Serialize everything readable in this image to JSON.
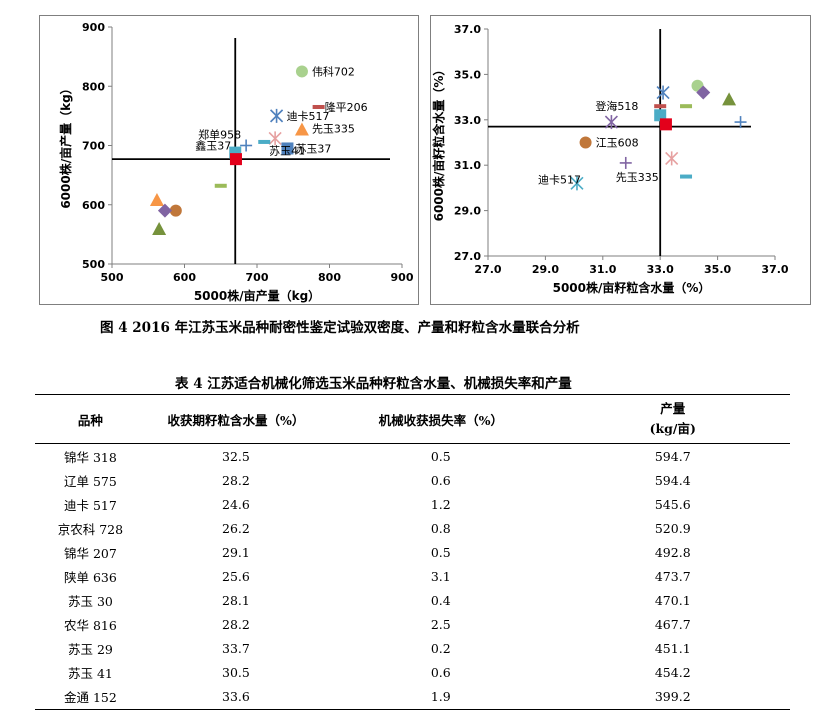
{
  "chart_data": [
    {
      "type": "scatter",
      "title": "",
      "xlabel": "5000株/亩产量（kg）",
      "ylabel": "6000株/亩产量（kg）",
      "xlim": [
        500,
        900
      ],
      "ylim": [
        500,
        900
      ],
      "x_ticks": [
        "500",
        "600",
        "700",
        "800",
        "900"
      ],
      "y_ticks": [
        "500",
        "600",
        "700",
        "800",
        "900"
      ],
      "crosshair": {
        "x": 670,
        "y": 677
      },
      "points": [
        {
          "x": 762,
          "y": 825,
          "marker": "circle",
          "color": "#a9d18e",
          "label": "伟科702"
        },
        {
          "x": 785,
          "y": 765,
          "marker": "dash",
          "color": "#c0504d",
          "label": "隆平206"
        },
        {
          "x": 727,
          "y": 750,
          "marker": "asterisk",
          "color": "#4f81bd",
          "label": "迪卡517"
        },
        {
          "x": 762,
          "y": 727,
          "marker": "triangle",
          "color": "#f79646",
          "label": "先玉335"
        },
        {
          "x": 725,
          "y": 712,
          "marker": "asterisk",
          "color": "#e6a0a0",
          "label": "苏玉41"
        },
        {
          "x": 685,
          "y": 700,
          "marker": "plus",
          "color": "#4f81bd",
          "label": "郑单958"
        },
        {
          "x": 670,
          "y": 688,
          "marker": "square",
          "color": "#4bacc6",
          "label": "鑫玉37"
        },
        {
          "x": 742,
          "y": 695,
          "marker": "square",
          "color": "#4f81bd",
          "label": "苏玉37"
        },
        {
          "x": 710,
          "y": 706,
          "marker": "dash",
          "color": "#4bacc6",
          "label": ""
        },
        {
          "x": 671,
          "y": 677,
          "marker": "square",
          "color": "#e3001b",
          "label": ""
        },
        {
          "x": 650,
          "y": 632,
          "marker": "dash",
          "color": "#9bbb59",
          "label": ""
        },
        {
          "x": 562,
          "y": 608,
          "marker": "triangle",
          "color": "#f79646",
          "label": ""
        },
        {
          "x": 588,
          "y": 590,
          "marker": "circle",
          "color": "#c0773a",
          "label": ""
        },
        {
          "x": 573,
          "y": 590,
          "marker": "diamond",
          "color": "#8064a2",
          "label": ""
        },
        {
          "x": 565,
          "y": 559,
          "marker": "triangle",
          "color": "#76923c",
          "label": ""
        }
      ]
    },
    {
      "type": "scatter",
      "title": "",
      "xlabel": "5000株/亩籽粒含水量（%）",
      "ylabel": "6000株/亩籽粒含水量（%）",
      "xlim": [
        27.0,
        37.0
      ],
      "ylim": [
        27.0,
        37.0
      ],
      "x_ticks": [
        "27.0",
        "29.0",
        "31.0",
        "33.0",
        "35.0",
        "37.0"
      ],
      "y_ticks": [
        "27.0",
        "29.0",
        "31.0",
        "33.0",
        "35.0",
        "37.0"
      ],
      "crosshair": {
        "x": 33.0,
        "y": 32.7
      },
      "points": [
        {
          "x": 33.1,
          "y": 34.2,
          "marker": "asterisk",
          "color": "#4f81bd",
          "label": ""
        },
        {
          "x": 34.3,
          "y": 34.5,
          "marker": "circle",
          "color": "#a9d18e",
          "label": ""
        },
        {
          "x": 34.5,
          "y": 34.2,
          "marker": "diamond",
          "color": "#8064a2",
          "label": ""
        },
        {
          "x": 35.4,
          "y": 33.9,
          "marker": "triangle",
          "color": "#76923c",
          "label": ""
        },
        {
          "x": 33.9,
          "y": 33.6,
          "marker": "dash",
          "color": "#9bbb59",
          "label": ""
        },
        {
          "x": 33.0,
          "y": 33.6,
          "marker": "dash",
          "color": "#c0504d",
          "label": ""
        },
        {
          "x": 33.0,
          "y": 33.2,
          "marker": "square",
          "color": "#4bacc6",
          "label": ""
        },
        {
          "x": 33.2,
          "y": 32.8,
          "marker": "square",
          "color": "#e3001b",
          "label": ""
        },
        {
          "x": 35.8,
          "y": 32.9,
          "marker": "plus",
          "color": "#4f81bd",
          "label": ""
        },
        {
          "x": 31.3,
          "y": 32.9,
          "marker": "asterisk",
          "color": "#8064a2",
          "label": "登海518"
        },
        {
          "x": 30.4,
          "y": 32.0,
          "marker": "circle",
          "color": "#c0773a",
          "label": "江玉608"
        },
        {
          "x": 33.4,
          "y": 31.3,
          "marker": "asterisk",
          "color": "#e6a0a0",
          "label": ""
        },
        {
          "x": 31.8,
          "y": 31.1,
          "marker": "plus",
          "color": "#8064a2",
          "label": "先玉335"
        },
        {
          "x": 33.9,
          "y": 30.5,
          "marker": "dash",
          "color": "#4bacc6",
          "label": ""
        },
        {
          "x": 30.1,
          "y": 30.2,
          "marker": "asterisk",
          "color": "#4bacc6",
          "label": "迪卡517"
        }
      ]
    }
  ],
  "figure_caption": "图 4 2016 年江苏玉米品种耐密性鉴定试验双密度、产量和籽粒含水量联合分析",
  "table": {
    "caption": "表 4 江苏适合机械化筛选玉米品种籽粒含水量、机械损失率和产量",
    "headers": {
      "variety": "品种",
      "moisture": "收获期籽粒含水量（%）",
      "loss": "机械收获损失率（%）",
      "yield_line1": "产量",
      "yield_line2": "(kg/亩)"
    },
    "rows": [
      [
        "锦华 318",
        "32.5",
        "0.5",
        "594.7"
      ],
      [
        "辽单 575",
        "28.2",
        "0.6",
        "594.4"
      ],
      [
        "迪卡 517",
        "24.6",
        "1.2",
        "545.6"
      ],
      [
        "京农科 728",
        "26.2",
        "0.8",
        "520.9"
      ],
      [
        "锦华 207",
        "29.1",
        "0.5",
        "492.8"
      ],
      [
        "陕单 636",
        "25.6",
        "3.1",
        "473.7"
      ],
      [
        "苏玉 30",
        "28.1",
        "0.4",
        "470.1"
      ],
      [
        "农华 816",
        "28.2",
        "2.5",
        "467.7"
      ],
      [
        "苏玉 29",
        "33.7",
        "0.2",
        "451.1"
      ],
      [
        "苏玉 41",
        "30.5",
        "0.6",
        "454.2"
      ],
      [
        "金通 152",
        "33.6",
        "1.9",
        "399.2"
      ]
    ]
  }
}
